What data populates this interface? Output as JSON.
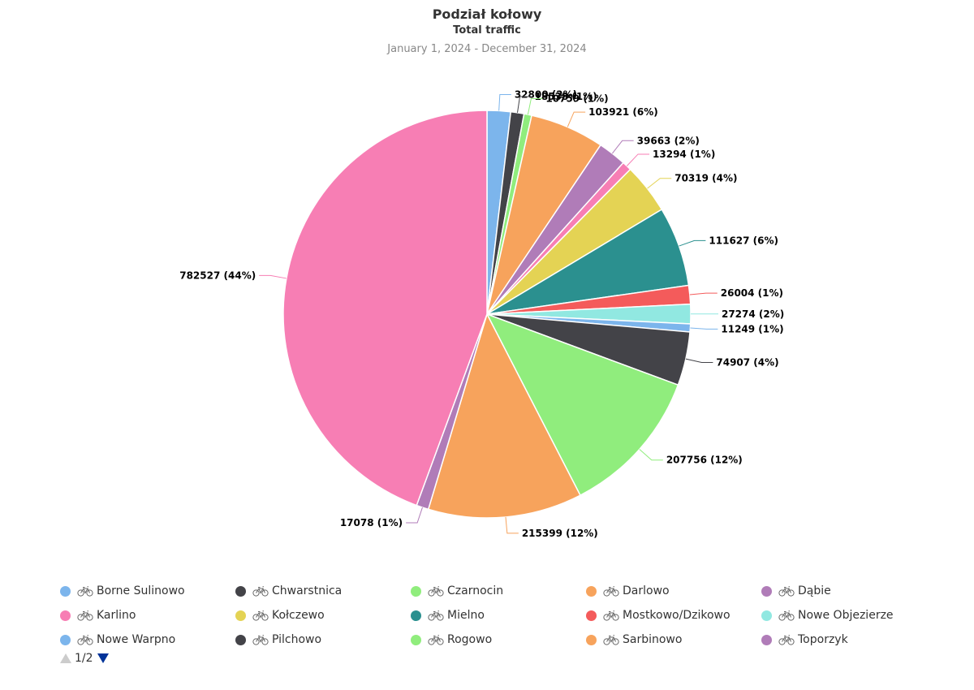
{
  "chart_data": {
    "type": "pie",
    "title": "Podział kołowy",
    "subtitle": "Total traffic",
    "date_range": "January 1, 2024 - December 31, 2024",
    "slices": [
      {
        "name": "Borne Sulinowo",
        "value": 32800,
        "label": "32800 (2%)",
        "color": "#7cb5ec"
      },
      {
        "name": "Chwarstnica",
        "value": 18538,
        "label": "18538 (1%)",
        "color": "#434348"
      },
      {
        "name": "Czarnocin",
        "value": 10759,
        "label": "10759 (1%)",
        "color": "#90ed7d"
      },
      {
        "name": "Darlowo",
        "value": 103921,
        "label": "103921 (6%)",
        "color": "#f7a35c"
      },
      {
        "name": "Dąbie",
        "value": 39663,
        "label": "39663 (2%)",
        "color": "#b07cb8"
      },
      {
        "name": "Karlino",
        "value": 13294,
        "label": "13294 (1%)",
        "color": "#f77eb4"
      },
      {
        "name": "Kołczewo",
        "value": 70319,
        "label": "70319 (4%)",
        "color": "#e4d354"
      },
      {
        "name": "Mielno",
        "value": 111627,
        "label": "111627 (6%)",
        "color": "#2b908f"
      },
      {
        "name": "Mostkowo/Dzikowo",
        "value": 26004,
        "label": "26004 (1%)",
        "color": "#f45b5b"
      },
      {
        "name": "Nowe Objezierze",
        "value": 27274,
        "label": "27274 (2%)",
        "color": "#91e8e1"
      },
      {
        "name": "Nowe Warpno",
        "value": 11249,
        "label": "11249 (1%)",
        "color": "#7cb5ec"
      },
      {
        "name": "Pilchowo",
        "value": 74907,
        "label": "74907 (4%)",
        "color": "#434348"
      },
      {
        "name": "Rogowo",
        "value": 207756,
        "label": "207756 (12%)",
        "color": "#90ed7d"
      },
      {
        "name": "Sarbinowo",
        "value": 215399,
        "label": "215399 (12%)",
        "color": "#f7a35c"
      },
      {
        "name": "Toporzyk",
        "value": 17078,
        "label": "17078 (1%)",
        "color": "#b07cb8"
      },
      {
        "name": "",
        "value": 782527,
        "label": "782527 (44%)",
        "color": "#f77eb4"
      }
    ]
  },
  "legend": {
    "items": [
      {
        "label": "Borne Sulinowo",
        "color": "#7cb5ec"
      },
      {
        "label": "Chwarstnica",
        "color": "#434348"
      },
      {
        "label": "Czarnocin",
        "color": "#90ed7d"
      },
      {
        "label": "Darlowo",
        "color": "#f7a35c"
      },
      {
        "label": "Dąbie",
        "color": "#b07cb8"
      },
      {
        "label": "Karlino",
        "color": "#f77eb4"
      },
      {
        "label": "Kołczewo",
        "color": "#e4d354"
      },
      {
        "label": "Mielno",
        "color": "#2b908f"
      },
      {
        "label": "Mostkowo/Dzikowo",
        "color": "#f45b5b"
      },
      {
        "label": "Nowe Objezierze",
        "color": "#91e8e1"
      },
      {
        "label": "Nowe Warpno",
        "color": "#7cb5ec"
      },
      {
        "label": "Pilchowo",
        "color": "#434348"
      },
      {
        "label": "Rogowo",
        "color": "#90ed7d"
      },
      {
        "label": "Sarbinowo",
        "color": "#f7a35c"
      },
      {
        "label": "Toporzyk",
        "color": "#b07cb8"
      }
    ],
    "icon": "bicycle-icon",
    "page": "1/2"
  }
}
